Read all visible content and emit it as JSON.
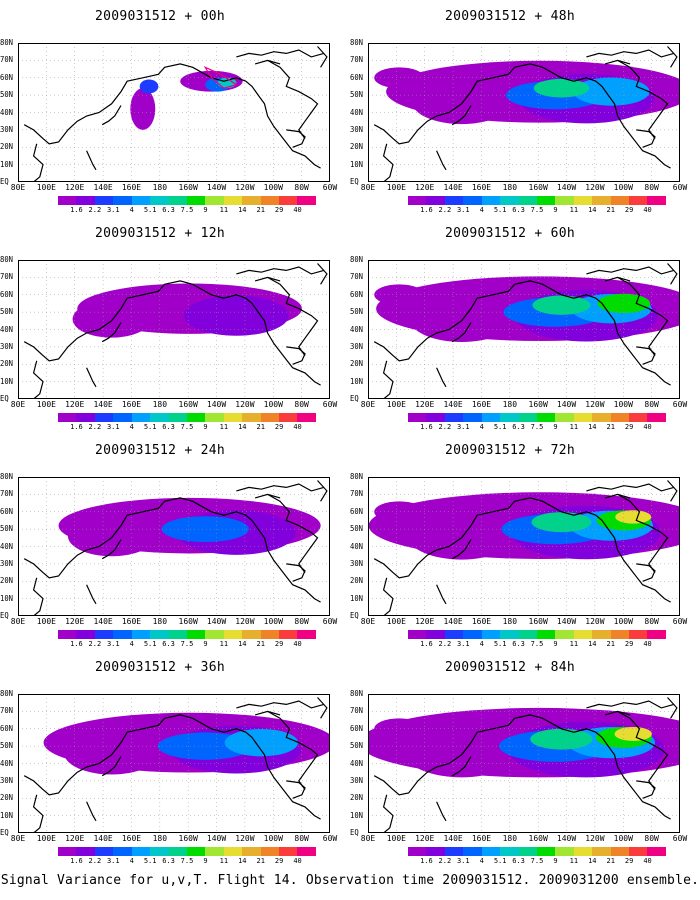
{
  "figure": {
    "caption": "Signal Variance for u,v,T. Flight 14. Observation time 2009031512. 2009031200 ensemble."
  },
  "axes": {
    "lat_labels": [
      "80N",
      "70N",
      "60N",
      "50N",
      "40N",
      "30N",
      "20N",
      "10N",
      "EQ"
    ],
    "lon_labels": [
      "80E",
      "100E",
      "120E",
      "140E",
      "160E",
      "180",
      "160W",
      "140W",
      "120W",
      "100W",
      "80W",
      "60W"
    ]
  },
  "colorbar": {
    "labels": [
      "1.6",
      "2.2",
      "3.1",
      "4",
      "5.1",
      "6.3",
      "7.5",
      "9",
      "11",
      "14",
      "21",
      "29",
      "40"
    ],
    "colors": [
      "#a000c8",
      "#8200dc",
      "#1e3cff",
      "#0064ff",
      "#00a0ff",
      "#00c8c8",
      "#00d28c",
      "#00dc00",
      "#a0e632",
      "#e6dc32",
      "#e6af2d",
      "#f08228",
      "#fa3c3c",
      "#f00082"
    ]
  },
  "chart_data": {
    "type": "heatmap",
    "variable": "Signal variance (u,v,T)",
    "observation_time": "2009031512",
    "ensemble": "2009031200",
    "flight": 14,
    "domain": {
      "lon": [
        "80E",
        "60W"
      ],
      "lat": [
        "EQ",
        "80N"
      ]
    },
    "panels": [
      {
        "title": "2009031512 + 00h",
        "lead_hours": 0,
        "spread": 0.25,
        "intensity": 0.35
      },
      {
        "title": "2009031512 + 12h",
        "lead_hours": 12,
        "spread": 0.45,
        "intensity": 0.4
      },
      {
        "title": "2009031512 + 24h",
        "lead_hours": 24,
        "spread": 0.6,
        "intensity": 0.5
      },
      {
        "title": "2009031512 + 36h",
        "lead_hours": 36,
        "spread": 0.72,
        "intensity": 0.6
      },
      {
        "title": "2009031512 + 48h",
        "lead_hours": 48,
        "spread": 0.78,
        "intensity": 0.7
      },
      {
        "title": "2009031512 + 60h",
        "lead_hours": 60,
        "spread": 0.86,
        "intensity": 0.8
      },
      {
        "title": "2009031512 + 72h",
        "lead_hours": 72,
        "spread": 0.92,
        "intensity": 0.88
      },
      {
        "title": "2009031512 + 84h",
        "lead_hours": 84,
        "spread": 1.0,
        "intensity": 0.95
      }
    ]
  }
}
